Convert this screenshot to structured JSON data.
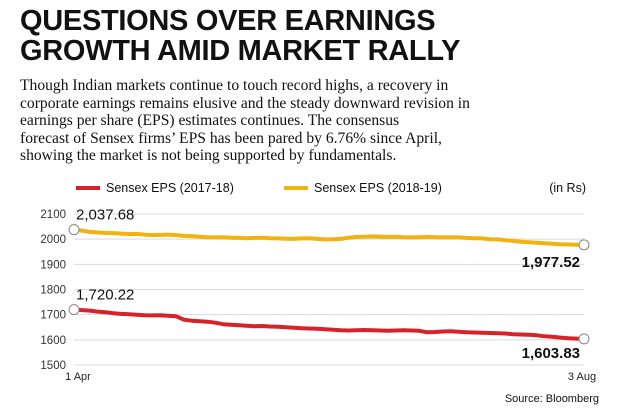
{
  "headline": {
    "line1": "QUESTIONS OVER EARNINGS",
    "line2": "GROWTH AMID MARKET RALLY"
  },
  "description": {
    "lines": [
      "Though Indian markets continue to touch record highs, a recovery in",
      "corporate earnings remains elusive and the steady downward revision in",
      "earnings per share (EPS) estimates continues. The consensus",
      "forecast of Sensex firms’ EPS has been pared by 6.76% since April,",
      "showing the market is not being supported by fundamentals."
    ]
  },
  "legend": {
    "unit": "(in Rs)"
  },
  "source": "Source: Bloomberg",
  "chart_data": {
    "type": "line",
    "x_start_label": "1 Apr",
    "x_end_label": "3 Aug",
    "ylim": [
      1500,
      2100
    ],
    "yticks": [
      1500,
      1600,
      1700,
      1800,
      1900,
      2000,
      2100
    ],
    "grid": true,
    "legend_position": "top",
    "series": [
      {
        "name": "Sensex EPS (2017-18)",
        "color": "#d6232a",
        "start_label": "1,720.22",
        "end_label": "1,603.83",
        "values": [
          1720.22,
          1718,
          1716,
          1712,
          1710,
          1706,
          1703,
          1702,
          1700,
          1698,
          1697,
          1698,
          1696,
          1694,
          1680,
          1676,
          1674,
          1672,
          1668,
          1662,
          1660,
          1658,
          1656,
          1654,
          1655,
          1653,
          1652,
          1650,
          1648,
          1646,
          1645,
          1644,
          1642,
          1640,
          1638,
          1637,
          1638,
          1639,
          1638,
          1637,
          1636,
          1637,
          1638,
          1637,
          1636,
          1630,
          1631,
          1633,
          1634,
          1632,
          1630,
          1629,
          1628,
          1627,
          1626,
          1625,
          1622,
          1621,
          1620,
          1618,
          1614,
          1612,
          1609,
          1606,
          1605,
          1603.83
        ]
      },
      {
        "name": "Sensex EPS (2018-19)",
        "color": "#f2b311",
        "start_label": "2,037.68",
        "end_label": "1,977.52",
        "values": [
          2037.68,
          2034,
          2029,
          2027,
          2025,
          2024,
          2022,
          2020,
          2021,
          2018,
          2016,
          2017,
          2018,
          2016,
          2013,
          2012,
          2010,
          2008,
          2007,
          2008,
          2006,
          2005,
          2004,
          2005,
          2006,
          2004,
          2003,
          2002,
          2001,
          2003,
          2004,
          2001,
          1999,
          2000,
          2001,
          2006,
          2009,
          2010,
          2011,
          2010,
          2009,
          2010,
          2008,
          2007,
          2008,
          2009,
          2008,
          2007,
          2008,
          2007,
          2005,
          2004,
          2003,
          2000,
          1999,
          1996,
          1993,
          1990,
          1988,
          1986,
          1984,
          1982,
          1980,
          1979,
          1978,
          1977.52
        ]
      }
    ]
  }
}
